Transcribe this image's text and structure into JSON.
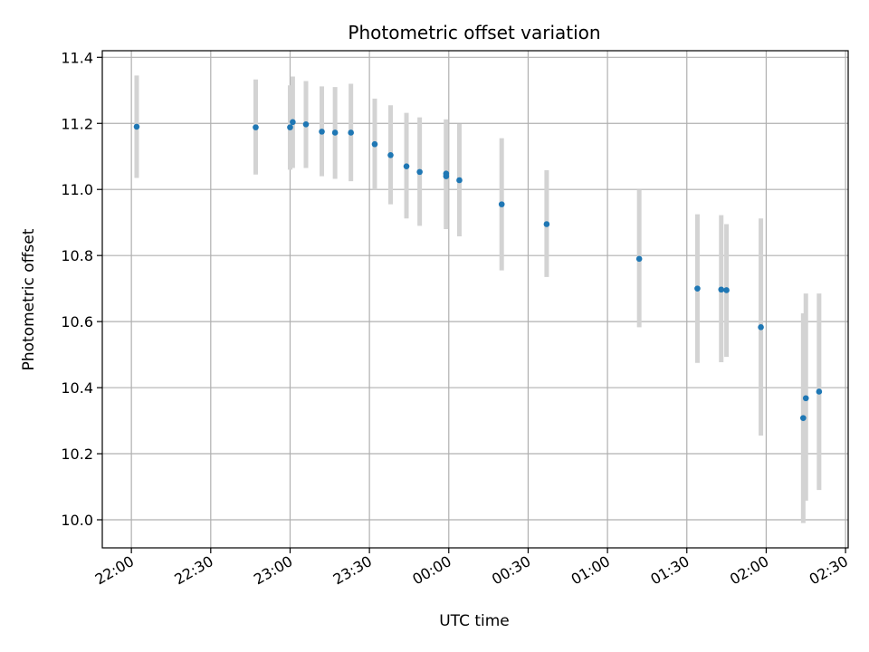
{
  "chart_data": {
    "type": "scatter",
    "title": "Photometric offset variation",
    "xlabel": "UTC time",
    "ylabel": "Photometric offset",
    "x_axis_type": "time",
    "x_range": [
      "21:49",
      "02:31"
    ],
    "ylim": [
      9.915,
      11.42
    ],
    "x_ticks": [
      {
        "time": "22:00",
        "label": "22:00"
      },
      {
        "time": "22:30",
        "label": "22:30"
      },
      {
        "time": "23:00",
        "label": "23:00"
      },
      {
        "time": "23:30",
        "label": "23:30"
      },
      {
        "time": "00:00",
        "label": "00:00"
      },
      {
        "time": "00:30",
        "label": "00:30"
      },
      {
        "time": "01:00",
        "label": "01:00"
      },
      {
        "time": "01:30",
        "label": "01:30"
      },
      {
        "time": "02:00",
        "label": "02:00"
      },
      {
        "time": "02:30",
        "label": "02:30"
      }
    ],
    "y_ticks": [
      10.0,
      10.2,
      10.4,
      10.6,
      10.8,
      11.0,
      11.2,
      11.4
    ],
    "y_tick_labels": [
      "10.0",
      "10.2",
      "10.4",
      "10.6",
      "10.8",
      "11.0",
      "11.2",
      "11.4"
    ],
    "grid": true,
    "point_color": "#1f77b4",
    "errorbar_color": "#d3d3d3",
    "points": [
      {
        "time": "22:02",
        "y": 11.19,
        "ylow": 11.035,
        "yhigh": 11.345
      },
      {
        "time": "22:47",
        "y": 11.188,
        "ylow": 11.045,
        "yhigh": 11.333
      },
      {
        "time": "23:00",
        "y": 11.188,
        "ylow": 11.06,
        "yhigh": 11.315
      },
      {
        "time": "23:01",
        "y": 11.204,
        "ylow": 11.065,
        "yhigh": 11.342
      },
      {
        "time": "23:06",
        "y": 11.197,
        "ylow": 11.065,
        "yhigh": 11.328
      },
      {
        "time": "23:12",
        "y": 11.175,
        "ylow": 11.04,
        "yhigh": 11.312
      },
      {
        "time": "23:17",
        "y": 11.172,
        "ylow": 11.032,
        "yhigh": 11.31
      },
      {
        "time": "23:23",
        "y": 11.172,
        "ylow": 11.025,
        "yhigh": 11.32
      },
      {
        "time": "23:32",
        "y": 11.137,
        "ylow": 11.0,
        "yhigh": 11.275
      },
      {
        "time": "23:38",
        "y": 11.104,
        "ylow": 10.955,
        "yhigh": 11.255
      },
      {
        "time": "23:44",
        "y": 11.07,
        "ylow": 10.912,
        "yhigh": 11.232
      },
      {
        "time": "23:49",
        "y": 11.053,
        "ylow": 10.89,
        "yhigh": 11.218
      },
      {
        "time": "23:59",
        "y": 11.048,
        "ylow": 10.88,
        "yhigh": 11.212
      },
      {
        "time": "23:59",
        "y": 11.04,
        "ylow": 10.88,
        "yhigh": 11.212
      },
      {
        "time": "00:04",
        "y": 11.028,
        "ylow": 10.858,
        "yhigh": 11.198
      },
      {
        "time": "00:20",
        "y": 10.955,
        "ylow": 10.755,
        "yhigh": 11.155
      },
      {
        "time": "00:37",
        "y": 10.895,
        "ylow": 10.735,
        "yhigh": 11.058
      },
      {
        "time": "01:12",
        "y": 10.79,
        "ylow": 10.583,
        "yhigh": 11.0
      },
      {
        "time": "01:34",
        "y": 10.7,
        "ylow": 10.475,
        "yhigh": 10.925
      },
      {
        "time": "01:43",
        "y": 10.697,
        "ylow": 10.477,
        "yhigh": 10.922
      },
      {
        "time": "01:45",
        "y": 10.695,
        "ylow": 10.493,
        "yhigh": 10.895
      },
      {
        "time": "01:58",
        "y": 10.583,
        "ylow": 10.255,
        "yhigh": 10.912
      },
      {
        "time": "02:14",
        "y": 10.308,
        "ylow": 9.99,
        "yhigh": 10.625
      },
      {
        "time": "02:15",
        "y": 10.368,
        "ylow": 10.058,
        "yhigh": 10.685
      },
      {
        "time": "02:20",
        "y": 10.388,
        "ylow": 10.09,
        "yhigh": 10.685
      }
    ]
  }
}
